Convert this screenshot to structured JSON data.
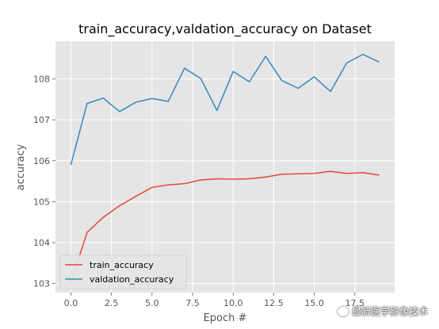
{
  "chart_data": {
    "type": "line",
    "title": "train_accuracy,valdation_accuracy on Dataset",
    "xlabel": "Epoch #",
    "ylabel": "accuracy",
    "xlim": [
      -0.95,
      19.95
    ],
    "ylim": [
      102.78,
      108.92
    ],
    "xticks": [
      0.0,
      2.5,
      5.0,
      7.5,
      10.0,
      12.5,
      15.0,
      17.5
    ],
    "xtick_labels": [
      "0.0",
      "2.5",
      "5.0",
      "7.5",
      "10.0",
      "12.5",
      "15.0",
      "17.5"
    ],
    "yticks": [
      103,
      104,
      105,
      106,
      107,
      108
    ],
    "ytick_labels": [
      "103",
      "104",
      "105",
      "106",
      "107",
      "108"
    ],
    "grid": true,
    "style": "ggplot",
    "legend_position": "lower-left",
    "x": [
      0,
      1,
      2,
      3,
      4,
      5,
      6,
      7,
      8,
      9,
      10,
      11,
      12,
      13,
      14,
      15,
      16,
      17,
      18,
      19
    ],
    "series": [
      {
        "name": "train_accuracy",
        "color": "#E24A33",
        "values": [
          103.02,
          104.25,
          104.62,
          104.9,
          105.13,
          105.35,
          105.41,
          105.44,
          105.53,
          105.56,
          105.55,
          105.56,
          105.6,
          105.67,
          105.68,
          105.69,
          105.74,
          105.69,
          105.71,
          105.65
        ]
      },
      {
        "name": "valdation_accuracy",
        "color": "#348ABD",
        "values": [
          105.9,
          107.4,
          107.53,
          107.2,
          107.43,
          107.52,
          107.45,
          108.26,
          108.01,
          107.23,
          108.18,
          107.93,
          108.55,
          107.96,
          107.77,
          108.05,
          107.69,
          108.39,
          108.6,
          108.41
        ]
      }
    ]
  },
  "watermark": {
    "text": "最新医学影像技术"
  }
}
